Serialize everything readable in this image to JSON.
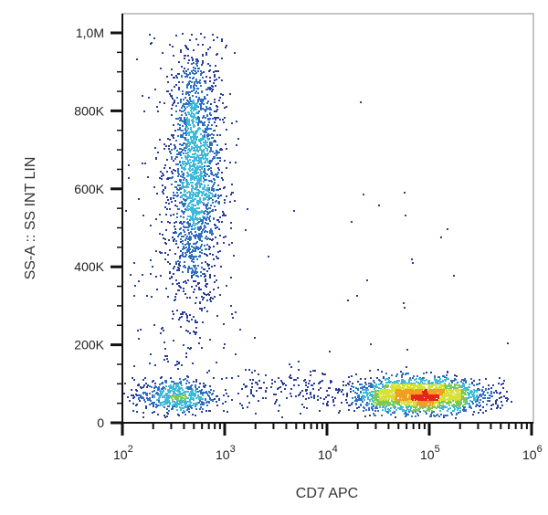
{
  "chart_data": {
    "type": "scatter",
    "subtype": "flow-cytometry density dot plot",
    "xlabel": "CD7 APC",
    "ylabel": "SS-A :: SS INT LIN",
    "x_scale": "log",
    "xlim": [
      100,
      1000000
    ],
    "ylim": [
      0,
      1000000
    ],
    "x_ticks": [
      {
        "value": 100,
        "base": "10",
        "exp": "2"
      },
      {
        "value": 1000,
        "base": "10",
        "exp": "3"
      },
      {
        "value": 10000,
        "base": "10",
        "exp": "4"
      },
      {
        "value": 100000,
        "base": "10",
        "exp": "5"
      },
      {
        "value": 1000000,
        "base": "10",
        "exp": "6"
      }
    ],
    "y_ticks": [
      {
        "value": 0,
        "label": "0"
      },
      {
        "value": 200000,
        "label": "200K"
      },
      {
        "value": 400000,
        "label": "400K"
      },
      {
        "value": 600000,
        "label": "600K"
      },
      {
        "value": 800000,
        "label": "800K"
      },
      {
        "value": 1000000,
        "label": "1,0M"
      }
    ],
    "grid": false,
    "legend": "none",
    "density_colors": [
      "#2b3f9a",
      "#2f6fc0",
      "#3fb9d8",
      "#7cc95a",
      "#d8e03a",
      "#f0a020",
      "#e8231a"
    ],
    "populations": [
      {
        "count": 1900,
        "x_log_mean": 2.7,
        "x_log_sd": 0.13,
        "y_mean": 640000,
        "y_sd": 170000
      },
      {
        "count": 550,
        "x_log_mean": 2.5,
        "x_log_sd": 0.2,
        "y_mean": 70000,
        "y_sd": 22000
      },
      {
        "count": 2100,
        "x_log_mean": 4.9,
        "x_log_sd": 0.33,
        "y_mean": 72000,
        "y_sd": 22000
      },
      {
        "count": 220,
        "x_log_mean": 2.6,
        "x_log_sd": 0.3,
        "y_mean": 450000,
        "y_sd": 280000
      },
      {
        "count": 160,
        "x_log_mean": 3.6,
        "x_log_sd": 0.35,
        "y_mean": 85000,
        "y_sd": 30000
      },
      {
        "count": 25,
        "x_log_mean": 4.7,
        "x_log_sd": 0.5,
        "y_mean": 350000,
        "y_sd": 200000
      }
    ]
  }
}
